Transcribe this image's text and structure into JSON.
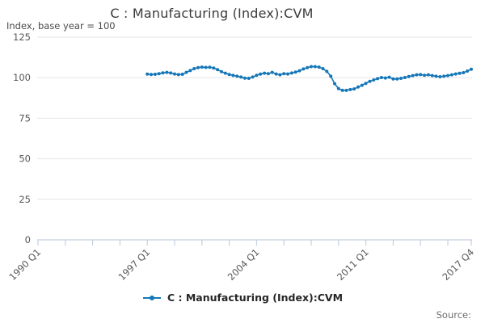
{
  "title": "C : Manufacturing (Index):CVM",
  "y_axis_label": "Index, base year = 100",
  "source_label": "Source:",
  "legend": {
    "label": "C : Manufacturing (Index):CVM"
  },
  "colors": {
    "line": "#1577b8",
    "grid": "#e6e6e6",
    "axis": "#c3cfe2",
    "tick_text": "#585858",
    "title_text": "#3a3a3a"
  },
  "chart_data": {
    "type": "line",
    "title": "C : Manufacturing (Index):CVM",
    "ylabel": "Index, base year = 100",
    "ylim": [
      0,
      125
    ],
    "y_ticks": [
      0,
      25,
      50,
      75,
      100,
      125
    ],
    "grid": "horizontal",
    "legend_position": "bottom",
    "marker": "circle",
    "x_axis": {
      "range_start": "1990 Q1",
      "range_end": "2017 Q4",
      "labeled_ticks": [
        "1990 Q1",
        "1997 Q1",
        "2004 Q1",
        "2011 Q1",
        "2017 Q4"
      ],
      "minor_tick_every_quarters": 7
    },
    "x": [
      "1997 Q1",
      "1997 Q2",
      "1997 Q3",
      "1997 Q4",
      "1998 Q1",
      "1998 Q2",
      "1998 Q3",
      "1998 Q4",
      "1999 Q1",
      "1999 Q2",
      "1999 Q3",
      "1999 Q4",
      "2000 Q1",
      "2000 Q2",
      "2000 Q3",
      "2000 Q4",
      "2001 Q1",
      "2001 Q2",
      "2001 Q3",
      "2001 Q4",
      "2002 Q1",
      "2002 Q2",
      "2002 Q3",
      "2002 Q4",
      "2003 Q1",
      "2003 Q2",
      "2003 Q3",
      "2003 Q4",
      "2004 Q1",
      "2004 Q2",
      "2004 Q3",
      "2004 Q4",
      "2005 Q1",
      "2005 Q2",
      "2005 Q3",
      "2005 Q4",
      "2006 Q1",
      "2006 Q2",
      "2006 Q3",
      "2006 Q4",
      "2007 Q1",
      "2007 Q2",
      "2007 Q3",
      "2007 Q4",
      "2008 Q1",
      "2008 Q2",
      "2008 Q3",
      "2008 Q4",
      "2009 Q1",
      "2009 Q2",
      "2009 Q3",
      "2009 Q4",
      "2010 Q1",
      "2010 Q2",
      "2010 Q3",
      "2010 Q4",
      "2011 Q1",
      "2011 Q2",
      "2011 Q3",
      "2011 Q4",
      "2012 Q1",
      "2012 Q2",
      "2012 Q3",
      "2012 Q4",
      "2013 Q1",
      "2013 Q2",
      "2013 Q3",
      "2013 Q4",
      "2014 Q1",
      "2014 Q2",
      "2014 Q3",
      "2014 Q4",
      "2015 Q1",
      "2015 Q2",
      "2015 Q3",
      "2015 Q4",
      "2016 Q1",
      "2016 Q2",
      "2016 Q3",
      "2016 Q4",
      "2017 Q1",
      "2017 Q2",
      "2017 Q3",
      "2017 Q4"
    ],
    "series": [
      {
        "name": "C : Manufacturing (Index):CVM",
        "values": [
          102.2,
          102.0,
          102.1,
          102.5,
          103.0,
          103.3,
          102.9,
          102.3,
          101.9,
          102.1,
          103.3,
          104.4,
          105.6,
          106.2,
          106.5,
          106.3,
          106.4,
          106.0,
          105.0,
          103.7,
          102.8,
          102.0,
          101.4,
          100.9,
          100.4,
          99.7,
          99.6,
          100.4,
          101.5,
          102.2,
          102.8,
          102.5,
          103.3,
          102.3,
          101.8,
          102.5,
          102.3,
          102.9,
          103.5,
          104.3,
          105.4,
          106.2,
          106.8,
          106.8,
          106.5,
          105.6,
          103.9,
          100.9,
          96.3,
          93.3,
          92.2,
          92.2,
          92.7,
          93.1,
          94.2,
          95.3,
          96.5,
          97.7,
          98.6,
          99.4,
          100.1,
          99.8,
          100.3,
          99.2,
          99.2,
          99.6,
          100.1,
          100.7,
          101.3,
          101.8,
          101.9,
          101.5,
          101.8,
          101.3,
          100.9,
          100.6,
          100.9,
          101.3,
          101.8,
          102.3,
          102.7,
          103.1,
          104.1,
          105.2
        ]
      }
    ]
  }
}
